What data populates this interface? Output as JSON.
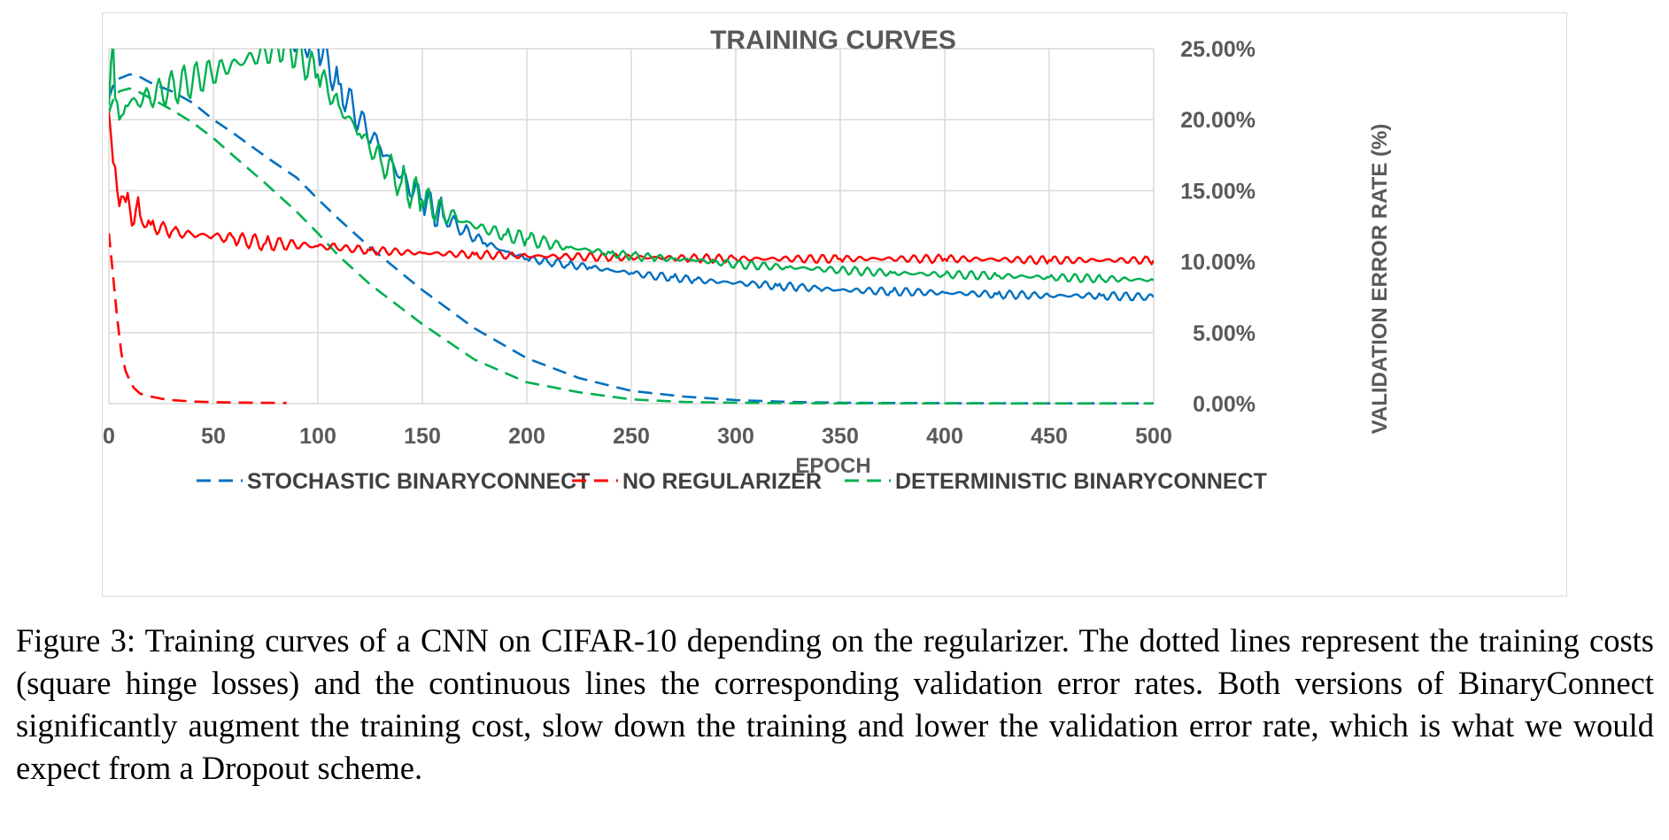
{
  "chart_data": {
    "type": "line",
    "title": "TRAINING CURVES",
    "xlabel": "EPOCH",
    "ylabel": "VALIDATION ERROR RATE (%)",
    "xlim": [
      0,
      500
    ],
    "ylim": [
      0,
      25
    ],
    "x_ticks": [
      "0",
      "50",
      "100",
      "150",
      "200",
      "250",
      "300",
      "350",
      "400",
      "450",
      "500"
    ],
    "y_ticks": [
      "0.00%",
      "5.00%",
      "10.00%",
      "15.00%",
      "20.00%",
      "25.00%"
    ],
    "y_axis_side": "right",
    "grid": "vertical",
    "legend_position": "bottom",
    "legend": [
      {
        "label": "STOCHASTIC BINARYCONNECT",
        "color": "#0070c0"
      },
      {
        "label": "NO REGULARIZER",
        "color": "#ff0000"
      },
      {
        "label": "DETERMINISTIC BINARYCONNECT",
        "color": "#00b050"
      }
    ],
    "series": [
      {
        "name": "STOCHASTIC BINARYCONNECT",
        "kind": "training-cost",
        "dash": "dashed",
        "color": "#0070c0",
        "x": [
          0,
          2,
          5,
          10,
          15,
          20,
          30,
          40,
          50,
          60,
          75,
          90,
          100,
          110,
          125,
          150,
          175,
          200,
          225,
          250,
          275,
          300,
          325,
          350,
          400,
          450,
          500
        ],
        "y": [
          21.5,
          22.4,
          22.9,
          23.2,
          23.0,
          22.6,
          22.0,
          21.2,
          20.0,
          19.0,
          17.4,
          15.9,
          14.4,
          13.0,
          11.0,
          8.0,
          5.3,
          3.2,
          1.8,
          0.9,
          0.5,
          0.25,
          0.12,
          0.06,
          0.03,
          0.02,
          0.02
        ]
      },
      {
        "name": "DETERMINISTIC BINARYCONNECT",
        "kind": "training-cost",
        "dash": "dashed",
        "color": "#00b050",
        "x": [
          0,
          2,
          5,
          10,
          15,
          20,
          30,
          40,
          50,
          60,
          75,
          90,
          100,
          110,
          125,
          150,
          175,
          200,
          225,
          250,
          275,
          300,
          325,
          350,
          400,
          450,
          500
        ],
        "y": [
          20.5,
          21.4,
          22.0,
          22.2,
          21.9,
          21.5,
          20.7,
          19.8,
          18.7,
          17.4,
          15.5,
          13.5,
          12.0,
          10.4,
          8.4,
          5.6,
          3.1,
          1.5,
          0.8,
          0.3,
          0.12,
          0.06,
          0.03,
          0.02,
          0.02,
          0.01,
          0.01
        ]
      },
      {
        "name": "NO REGULARIZER",
        "kind": "training-cost",
        "dash": "dashed",
        "color": "#ff0000",
        "x": [
          0,
          2,
          4,
          6,
          8,
          10,
          12,
          15,
          20,
          25,
          30,
          40,
          50,
          60,
          70,
          85
        ],
        "y": [
          12.0,
          9.0,
          6.0,
          3.5,
          2.3,
          1.6,
          1.1,
          0.7,
          0.5,
          0.35,
          0.25,
          0.15,
          0.1,
          0.08,
          0.06,
          0.05
        ]
      },
      {
        "name": "STOCHASTIC BINARYCONNECT",
        "kind": "validation-error",
        "dash": "solid",
        "color": "#0070c0",
        "x": [
          85,
          100,
          110,
          120,
          130,
          140,
          150,
          160,
          170,
          180,
          190,
          200,
          210,
          220,
          230,
          240,
          250,
          260,
          270,
          280,
          290,
          300,
          310,
          320,
          330,
          340,
          350,
          375,
          400,
          425,
          450,
          475,
          500
        ],
        "y": [
          25.5,
          25.3,
          22.5,
          20.0,
          18.0,
          16.0,
          14.3,
          13.2,
          12.2,
          11.3,
          10.7,
          10.2,
          10.0,
          9.8,
          9.6,
          9.4,
          9.2,
          9.0,
          8.9,
          8.7,
          8.6,
          8.5,
          8.4,
          8.3,
          8.2,
          8.1,
          8.0,
          7.9,
          7.8,
          7.7,
          7.6,
          7.6,
          7.5
        ]
      },
      {
        "name": "NO REGULARIZER",
        "kind": "validation-error",
        "dash": "solid",
        "color": "#ff0000",
        "x": [
          0,
          2,
          4,
          6,
          8,
          10,
          15,
          20,
          30,
          40,
          50,
          60,
          75,
          100,
          125,
          150,
          175,
          200,
          250,
          300,
          350,
          400,
          450,
          500
        ],
        "y": [
          20.5,
          17.0,
          15.0,
          14.6,
          14.2,
          13.8,
          13.2,
          12.6,
          12.1,
          11.9,
          11.8,
          11.6,
          11.3,
          11.1,
          10.8,
          10.6,
          10.5,
          10.4,
          10.3,
          10.2,
          10.2,
          10.2,
          10.1,
          10.1
        ]
      },
      {
        "name": "DETERMINISTIC BINARYCONNECT",
        "kind": "validation-error",
        "dash": "solid",
        "color": "#00b050",
        "x": [
          0,
          1,
          2,
          3,
          5,
          8,
          85,
          100,
          110,
          120,
          130,
          140,
          150,
          160,
          170,
          180,
          190,
          200,
          210,
          220,
          230,
          240,
          250,
          260,
          270,
          280,
          290,
          300,
          325,
          350,
          375,
          400,
          425,
          450,
          475,
          500
        ],
        "y": [
          21.0,
          24.0,
          25.5,
          21.5,
          20.0,
          21.0,
          25.3,
          23.2,
          21.0,
          19.0,
          17.2,
          15.6,
          14.3,
          13.5,
          12.8,
          12.3,
          11.9,
          11.6,
          11.3,
          11.0,
          10.8,
          10.6,
          10.4,
          10.3,
          10.2,
          10.1,
          10.0,
          9.8,
          9.6,
          9.4,
          9.2,
          9.1,
          9.0,
          8.9,
          8.8,
          8.7
        ]
      }
    ]
  },
  "caption": "Figure 3: Training curves of a CNN on CIFAR-10 depending on the regularizer. The dotted lines represent the training costs (square hinge losses) and the continuous lines the corresponding validation error rates. Both versions of BinaryConnect significantly augment the training cost, slow down the training and lower the validation error rate, which is what we would expect from a Dropout scheme."
}
